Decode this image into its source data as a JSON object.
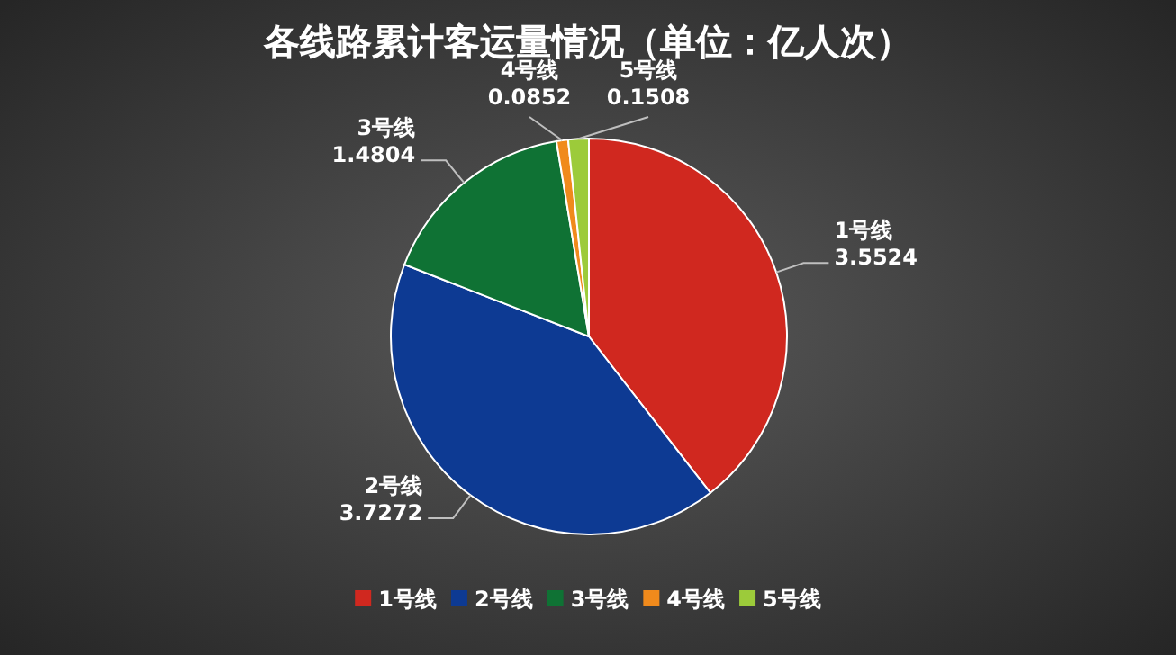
{
  "chart_data": {
    "type": "pie",
    "title": "各线路累计客运量情况（单位：亿人次）",
    "categories": [
      "1号线",
      "2号线",
      "3号线",
      "4号线",
      "5号线"
    ],
    "values": [
      3.5524,
      3.7272,
      1.4804,
      0.0852,
      0.1508
    ],
    "colors": [
      "#d0281f",
      "#0d3a93",
      "#0f7234",
      "#f08a1c",
      "#9ccb3a"
    ],
    "data_labels": true,
    "legend": "bottom"
  }
}
